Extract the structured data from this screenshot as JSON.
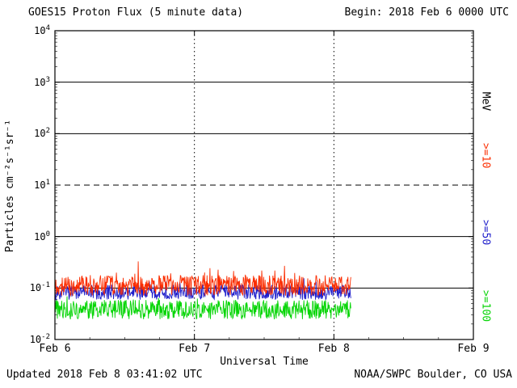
{
  "header": {
    "begin_label": "Begin: 2018 Feb 6 0000 UTC"
  },
  "footer": {
    "updated": "Updated 2018 Feb  8 03:41:02 UTC",
    "credit": "NOAA/SWPC Boulder, CO USA"
  },
  "chart_data": {
    "type": "line",
    "title": "GOES15 Proton Flux (5 minute data)",
    "xlabel": "Universal Time",
    "ylabel": "Particles cm⁻²s⁻¹sr⁻¹",
    "right_axis_label": "MeV",
    "x_tick_labels": [
      "Feb 6",
      "Feb 7",
      "Feb 8",
      "Feb 9"
    ],
    "x_range_days": [
      0,
      3
    ],
    "y_log_range": [
      -2,
      4
    ],
    "y_tick_exponents": [
      4,
      3,
      2,
      1,
      0,
      -1,
      -2
    ],
    "reference_lines": [
      {
        "exponent": 3,
        "style": "solid"
      },
      {
        "exponent": 2,
        "style": "solid"
      },
      {
        "exponent": 1,
        "style": "dashed"
      },
      {
        "exponent": 0,
        "style": "solid"
      },
      {
        "exponent": -1,
        "style": "solid"
      }
    ],
    "day_gridlines": [
      1,
      2
    ],
    "grid": "partial",
    "legend_position": "right-rotated",
    "sample_interval_minutes": 5,
    "data_end_day": 2.12,
    "noise_seed": 20180206,
    "series": [
      {
        "label": ">=10",
        "name": ">=10 MeV proton flux",
        "color": "#fb2d00",
        "baseline_log10": -0.95,
        "noise_log10": 0.2,
        "spike_prob": 0.07,
        "spike_log10": 0.32,
        "approx_range": [
          0.07,
          0.4
        ]
      },
      {
        "label": ">=50",
        "name": ">=50 MeV proton flux",
        "color": "#1d1dcb",
        "baseline_log10": -1.08,
        "noise_log10": 0.15,
        "spike_prob": 0.05,
        "spike_log10": 0.18,
        "approx_range": [
          0.05,
          0.15
        ]
      },
      {
        "label": ">=100",
        "name": ">=100 MeV proton flux",
        "color": "#06d506",
        "baseline_log10": -1.42,
        "noise_log10": 0.19,
        "spike_prob": 0.05,
        "spike_log10": 0.17,
        "approx_range": [
          0.02,
          0.08
        ]
      }
    ]
  }
}
